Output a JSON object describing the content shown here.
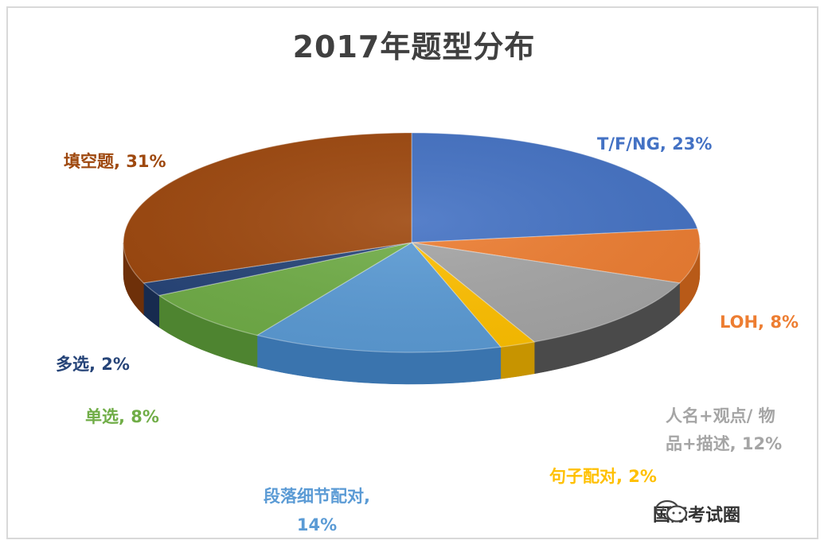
{
  "chart_data": {
    "type": "pie",
    "title": "2017年题型分布",
    "slices": [
      {
        "label": "T/F/NG",
        "display": "T/F/NG, 23%",
        "value": 23,
        "color": "#4472C4",
        "dark": "#2F5597",
        "text_color": "#4472C4"
      },
      {
        "label": "LOH",
        "display": "LOH, 8%",
        "value": 8,
        "color": "#ED7D31",
        "dark": "#B85A18",
        "text_color": "#ED7D31"
      },
      {
        "label": "人名+观点/ 物品+描述",
        "display": "人名+观点/ 物 品+描述, 12%",
        "display_lines": [
          "人名+观点/ 物",
          "品+描述, 12%"
        ],
        "value": 12,
        "color": "#A5A5A5",
        "dark": "#4A4A4A",
        "text_color": "#A5A5A5"
      },
      {
        "label": "句子配对",
        "display": "句子配对, 2%",
        "value": 2,
        "color": "#FFC000",
        "dark": "#C79400",
        "text_color": "#FFC000"
      },
      {
        "label": "段落细节配对",
        "display": "段落细节配对, 14%",
        "display_lines": [
          "段落细节配对,",
          "14%"
        ],
        "value": 14,
        "color": "#5B9BD5",
        "dark": "#3A74AE",
        "text_color": "#5B9BD5"
      },
      {
        "label": "单选",
        "display": "单选, 8%",
        "value": 8,
        "color": "#70AD47",
        "dark": "#4E8430",
        "text_color": "#70AD47"
      },
      {
        "label": "多选",
        "display": "多选, 2%",
        "value": 2,
        "color": "#264478",
        "dark": "#172B4F",
        "text_color": "#264478"
      },
      {
        "label": "填空题",
        "display": "填空题, 31%",
        "value": 31,
        "color": "#9E480E",
        "dark": "#6E3009",
        "text_color": "#9E480E"
      }
    ],
    "style": "3d-pie",
    "legend": "none"
  },
  "watermark": {
    "text": "国际考试圈",
    "icon": "wechat-icon"
  }
}
